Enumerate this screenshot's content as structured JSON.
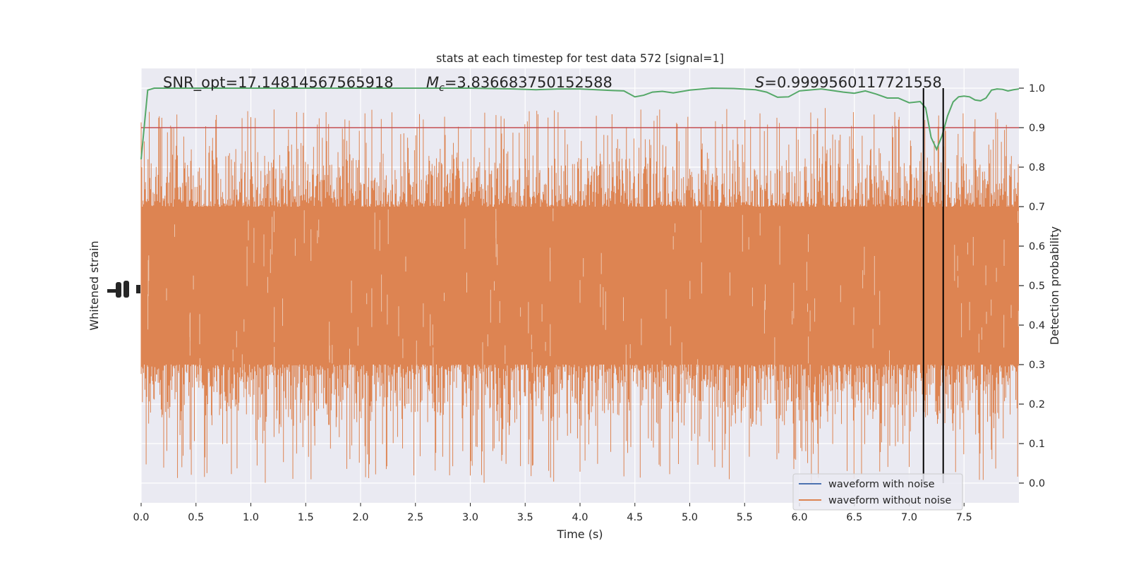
{
  "chart_data": {
    "type": "line",
    "title": "stats at each timestep for test data 572 [signal=1]",
    "xlabel": "Time (s)",
    "ylabel_left": "Whitened strain",
    "ylabel_right": "Detection probability",
    "xlim": [
      0.0,
      8.0
    ],
    "ylim_right": [
      -0.05,
      1.05
    ],
    "xticks": [
      "0.0",
      "0.5",
      "1.0",
      "1.5",
      "2.0",
      "2.5",
      "3.0",
      "3.5",
      "4.0",
      "4.5",
      "5.0",
      "5.5",
      "6.0",
      "6.5",
      "7.0",
      "7.5"
    ],
    "yticks_right": [
      "0.0",
      "0.1",
      "0.2",
      "0.3",
      "0.4",
      "0.5",
      "0.6",
      "0.7",
      "0.8",
      "0.9",
      "1.0"
    ],
    "grid": true,
    "annotations": {
      "snr": "SNR_opt=17.14814567565918",
      "mc_symbol": "M",
      "mc_sub": "c",
      "mc_value": "=3.836683750152588",
      "s_symbol": "S",
      "s_value": "=0.9999560117721558"
    },
    "threshold": 0.9,
    "vertical_lines_x": [
      7.13,
      7.31
    ],
    "legend": {
      "location": "lower right",
      "entries": [
        "waveform with noise",
        "waveform without noise"
      ]
    },
    "colors": {
      "background": "#eaeaf2",
      "grid": "#ffffff",
      "noise_waveform": "#4c72b0",
      "clean_waveform": "#dd8452",
      "probability": "#55a868",
      "threshold": "#c44e52",
      "markers": "#000000"
    },
    "probability_series": {
      "x": [
        0.0,
        0.06,
        0.12,
        0.2,
        0.3,
        0.5,
        0.8,
        1.0,
        1.5,
        2.0,
        2.5,
        3.0,
        3.4,
        3.6,
        3.8,
        4.0,
        4.3,
        4.4,
        4.5,
        4.58,
        4.66,
        4.75,
        4.85,
        5.0,
        5.2,
        5.4,
        5.6,
        5.7,
        5.8,
        5.9,
        6.0,
        6.2,
        6.4,
        6.5,
        6.6,
        6.7,
        6.8,
        6.9,
        7.0,
        7.1,
        7.15,
        7.2,
        7.25,
        7.3,
        7.35,
        7.4,
        7.45,
        7.5,
        7.55,
        7.6,
        7.65,
        7.7,
        7.75,
        7.8,
        7.85,
        7.9,
        7.95,
        8.0
      ],
      "y": [
        0.82,
        0.995,
        1.0,
        1.0,
        1.0,
        1.0,
        1.0,
        1.0,
        1.0,
        1.0,
        1.0,
        1.0,
        0.998,
        0.996,
        0.998,
        0.998,
        0.994,
        0.993,
        0.978,
        0.982,
        0.99,
        0.992,
        0.988,
        0.995,
        1.0,
        0.999,
        0.996,
        0.99,
        0.977,
        0.978,
        0.993,
        0.998,
        0.99,
        0.987,
        0.993,
        0.985,
        0.975,
        0.975,
        0.963,
        0.966,
        0.95,
        0.875,
        0.845,
        0.88,
        0.93,
        0.965,
        0.978,
        0.98,
        0.978,
        0.97,
        0.968,
        0.975,
        0.995,
        0.998,
        0.997,
        0.993,
        0.996,
        0.998
      ]
    },
    "clean_waveform_band": {
      "dense_band_prob": [
        0.3,
        0.7
      ],
      "spike_min_prob": 0.0,
      "spike_max_prob": 0.95
    }
  }
}
